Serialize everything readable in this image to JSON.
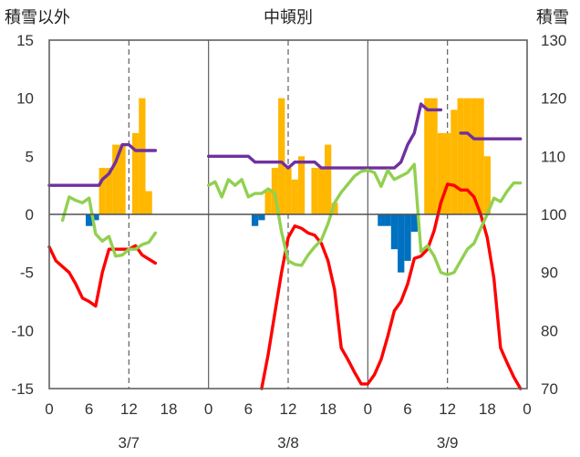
{
  "chart_data": {
    "type": "bar+line",
    "title": "中頓別",
    "left_axis_label": "積雪以外",
    "right_axis_label": "積雪",
    "ylim_left": [
      -15,
      15
    ],
    "yticks_left": [
      15,
      10,
      5,
      0,
      -5,
      -10,
      -15
    ],
    "ylim_right": [
      70,
      130
    ],
    "yticks_right": [
      130,
      120,
      110,
      100,
      90,
      80,
      70
    ],
    "x_range": [
      0,
      72
    ],
    "x_tick_labels": [
      "0",
      "6",
      "12",
      "18",
      "0",
      "6",
      "12",
      "18",
      "0",
      "6",
      "12",
      "18",
      "0"
    ],
    "day_labels": [
      "3/7",
      "3/8",
      "3/9"
    ],
    "grid": "dashed vertical lines at 12h each day",
    "day_separators": [
      24,
      48
    ],
    "series": [
      {
        "color": "#FFB700",
        "kind": "bar",
        "data": [
          [
            8,
            4
          ],
          [
            9,
            4
          ],
          [
            10,
            6
          ],
          [
            11,
            6
          ],
          [
            13,
            7
          ],
          [
            14,
            10
          ],
          [
            15,
            2
          ],
          [
            33,
            2
          ],
          [
            34,
            4
          ],
          [
            35,
            10
          ],
          [
            36,
            4
          ],
          [
            37,
            3
          ],
          [
            38,
            5
          ],
          [
            40,
            4
          ],
          [
            41,
            4
          ],
          [
            42,
            6
          ],
          [
            43,
            1
          ],
          [
            57,
            10
          ],
          [
            58,
            10
          ],
          [
            59,
            7
          ],
          [
            60,
            7
          ],
          [
            61,
            9
          ],
          [
            62,
            10
          ],
          [
            63,
            10
          ],
          [
            64,
            10
          ],
          [
            65,
            10
          ],
          [
            66,
            5
          ]
        ]
      },
      {
        "color": "#0070C0",
        "kind": "bar",
        "data": [
          [
            6,
            -1
          ],
          [
            7,
            -0.5
          ],
          [
            31,
            -1
          ],
          [
            32,
            -0.5
          ],
          [
            50,
            -1
          ],
          [
            51,
            -1
          ],
          [
            52,
            -3
          ],
          [
            53,
            -5
          ],
          [
            54,
            -4
          ],
          [
            55,
            -1.5
          ]
        ]
      },
      {
        "color": "#7030A0",
        "kind": "line",
        "axis": "right",
        "segments": [
          [
            [
              0,
              105
            ],
            [
              7.5,
              105
            ],
            [
              8,
              106
            ],
            [
              9,
              107
            ],
            [
              10,
              109
            ],
            [
              11,
              112
            ],
            [
              12,
              112
            ],
            [
              13,
              111
            ],
            [
              16,
              111
            ]
          ],
          [
            [
              24,
              110
            ],
            [
              30,
              110
            ],
            [
              31,
              109
            ],
            [
              35,
              109
            ],
            [
              36,
              108
            ],
            [
              37,
              109
            ],
            [
              40,
              109
            ],
            [
              41,
              108
            ],
            [
              49,
              108
            ],
            [
              50,
              108
            ],
            [
              52,
              108
            ],
            [
              53,
              109
            ],
            [
              54,
              112
            ],
            [
              55,
              114
            ],
            [
              56,
              119
            ],
            [
              57,
              118
            ],
            [
              59,
              118
            ]
          ],
          [
            [
              62,
              114
            ],
            [
              63,
              114
            ],
            [
              64,
              113
            ],
            [
              71,
              113
            ]
          ]
        ]
      },
      {
        "color": "#FF0000",
        "kind": "line",
        "axis": "left",
        "segments": [
          [
            [
              0,
              -2.8
            ],
            [
              1,
              -4
            ],
            [
              2,
              -4.5
            ],
            [
              3,
              -5
            ],
            [
              4,
              -6
            ],
            [
              5,
              -7.2
            ],
            [
              6,
              -7.5
            ],
            [
              7,
              -7.9
            ],
            [
              8,
              -5
            ],
            [
              9,
              -3
            ],
            [
              10,
              -3
            ],
            [
              11,
              -3
            ],
            [
              12,
              -3
            ],
            [
              13,
              -2.7
            ],
            [
              14,
              -3.5
            ],
            [
              16,
              -4.2
            ]
          ],
          [
            [
              32,
              -15
            ],
            [
              33,
              -12
            ],
            [
              34,
              -8.5
            ],
            [
              35,
              -5
            ],
            [
              36,
              -2
            ],
            [
              37,
              -1
            ],
            [
              38,
              -1.2
            ],
            [
              39,
              -1.6
            ],
            [
              40,
              -1.8
            ],
            [
              41,
              -2.5
            ],
            [
              42,
              -4
            ],
            [
              43,
              -6.5
            ],
            [
              44,
              -11.5
            ],
            [
              45,
              -12.5
            ],
            [
              46,
              -13.6
            ],
            [
              47,
              -14.6
            ],
            [
              48,
              -14.6
            ],
            [
              49,
              -13.8
            ],
            [
              50,
              -12.5
            ],
            [
              51,
              -10.5
            ],
            [
              52,
              -8.3
            ],
            [
              53,
              -7.5
            ],
            [
              54,
              -6
            ],
            [
              55,
              -3.8
            ],
            [
              56,
              -3.6
            ],
            [
              57,
              -3
            ],
            [
              58,
              -1.4
            ],
            [
              59,
              1
            ],
            [
              60,
              2.6
            ],
            [
              61,
              2.5
            ],
            [
              62,
              2.1
            ],
            [
              63,
              2.1
            ],
            [
              64,
              1.5
            ],
            [
              65,
              0
            ],
            [
              66,
              -2
            ],
            [
              67,
              -5.5
            ],
            [
              68,
              -11.5
            ],
            [
              69,
              -12.8
            ],
            [
              70,
              -14
            ],
            [
              71,
              -15
            ]
          ]
        ]
      },
      {
        "color": "#92D050",
        "kind": "line",
        "axis": "left",
        "segments": [
          [
            [
              2,
              -0.5
            ],
            [
              3,
              1.5
            ],
            [
              4,
              1.2
            ],
            [
              5,
              1
            ],
            [
              6,
              1.4
            ],
            [
              7,
              -1.7
            ],
            [
              8,
              -2.3
            ],
            [
              9,
              -1.9
            ],
            [
              10,
              -3.6
            ],
            [
              11,
              -3.5
            ],
            [
              12,
              -3
            ],
            [
              13,
              -3
            ],
            [
              14,
              -2.6
            ],
            [
              15,
              -2.4
            ],
            [
              16,
              -1.6
            ]
          ],
          [
            [
              24,
              2.5
            ],
            [
              25,
              2.8
            ],
            [
              26,
              1.5
            ],
            [
              27,
              3
            ],
            [
              28,
              2.5
            ],
            [
              29,
              3
            ],
            [
              30,
              1.5
            ],
            [
              31,
              1.8
            ],
            [
              32,
              1.8
            ],
            [
              33,
              2.2
            ],
            [
              34,
              1.8
            ],
            [
              35,
              -1.5
            ],
            [
              36,
              -4
            ],
            [
              37,
              -4.3
            ],
            [
              38,
              -4.4
            ],
            [
              39,
              -3.5
            ],
            [
              40,
              -2.8
            ],
            [
              41,
              -2.2
            ],
            [
              42,
              -0.8
            ],
            [
              43,
              1
            ],
            [
              44,
              1.9
            ],
            [
              45,
              2.6
            ],
            [
              46,
              3.3
            ],
            [
              47,
              3.7
            ],
            [
              48,
              3.8
            ],
            [
              49,
              3.6
            ],
            [
              50,
              2.4
            ],
            [
              51,
              3.8
            ],
            [
              52,
              3
            ],
            [
              53,
              3.3
            ],
            [
              54,
              3.6
            ],
            [
              55,
              4.3
            ],
            [
              56,
              -3.2
            ],
            [
              57,
              -2.7
            ],
            [
              58,
              -3.6
            ],
            [
              59,
              -5
            ],
            [
              60,
              -5.2
            ],
            [
              61,
              -5
            ],
            [
              62,
              -4
            ],
            [
              63,
              -3
            ],
            [
              64,
              -2.5
            ],
            [
              65,
              -1.2
            ],
            [
              66,
              0
            ],
            [
              67,
              1.4
            ],
            [
              68,
              1.1
            ],
            [
              69,
              2
            ],
            [
              70,
              2.7
            ],
            [
              71,
              2.7
            ]
          ]
        ]
      }
    ]
  }
}
